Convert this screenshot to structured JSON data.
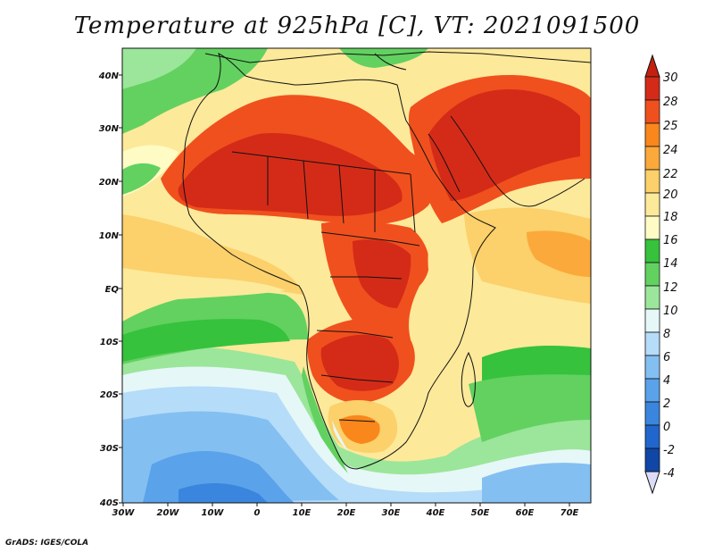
{
  "title": "Temperature at 925hPa [C], VT: 2021091500",
  "credit": "GrADS: IGES/COLA",
  "map": {
    "lat_labels": [
      "40N",
      "30N",
      "20N",
      "10N",
      "EQ",
      "10S",
      "20S",
      "30S",
      "40S"
    ],
    "lon_labels": [
      "30W",
      "20W",
      "10W",
      "0",
      "10E",
      "20E",
      "30E",
      "40E",
      "50E",
      "60E",
      "70E"
    ]
  },
  "colorbar": {
    "labels": [
      "30",
      "28",
      "25",
      "24",
      "22",
      "20",
      "18",
      "16",
      "14",
      "12",
      "10",
      "8",
      "6",
      "4",
      "2",
      "0",
      "-2",
      "-4"
    ],
    "colors": [
      "#d42b18",
      "#f0501e",
      "#f9871c",
      "#fba93b",
      "#fcd06a",
      "#fde99a",
      "#fefcc4",
      "#36c23c",
      "#62d160",
      "#9be69a",
      "#e6f7f8",
      "#b5dcf8",
      "#84bff2",
      "#5aa2ea",
      "#3a86de",
      "#2166cc",
      "#1046a6",
      "#0b1f7a"
    ],
    "over_color": "#c42010",
    "under_color": "#dcdcf8"
  }
}
